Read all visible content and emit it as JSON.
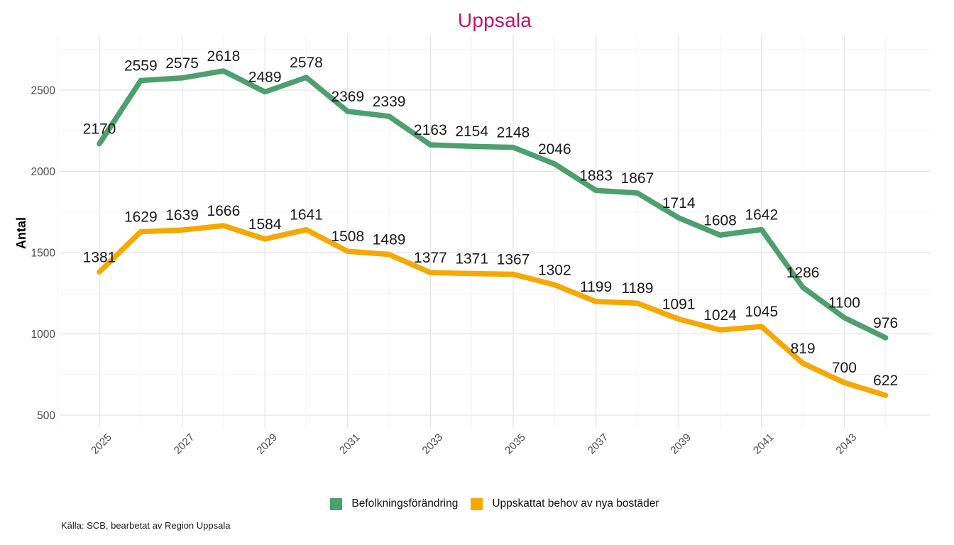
{
  "chart_data": {
    "type": "line",
    "title": "Uppsala",
    "title_color": "#c4126d",
    "ylabel": "Antal",
    "xlabel": "",
    "x": [
      2025,
      2026,
      2027,
      2028,
      2029,
      2030,
      2031,
      2032,
      2033,
      2034,
      2035,
      2036,
      2037,
      2038,
      2039,
      2040,
      2041,
      2042,
      2043,
      2044
    ],
    "x_tick_labels": [
      "2025",
      "2027",
      "2029",
      "2031",
      "2033",
      "2035",
      "2037",
      "2039",
      "2041",
      "2043"
    ],
    "y_ticks": [
      500,
      1000,
      1500,
      2000,
      2500
    ],
    "y_minor_ticks": [
      750,
      1250,
      1750,
      2250,
      2750
    ],
    "ylim": [
      500,
      2750
    ],
    "grid": true,
    "legend_position": "bottom",
    "series": [
      {
        "name": "Befolkningsförändring",
        "color": "#4da06e",
        "values": [
          2170,
          2559,
          2575,
          2618,
          2489,
          2578,
          2369,
          2339,
          2163,
          2154,
          2148,
          2046,
          1883,
          1867,
          1714,
          1608,
          1642,
          1286,
          1100,
          976
        ]
      },
      {
        "name": "Uppskattat behov av nya bostäder",
        "color": "#f6a800",
        "values": [
          1381,
          1629,
          1639,
          1666,
          1584,
          1641,
          1508,
          1489,
          1377,
          1371,
          1367,
          1302,
          1199,
          1189,
          1091,
          1024,
          1045,
          819,
          700,
          622
        ]
      }
    ]
  },
  "source": {
    "text": "Källa: SCB, bearbetat av Region Uppsala"
  }
}
